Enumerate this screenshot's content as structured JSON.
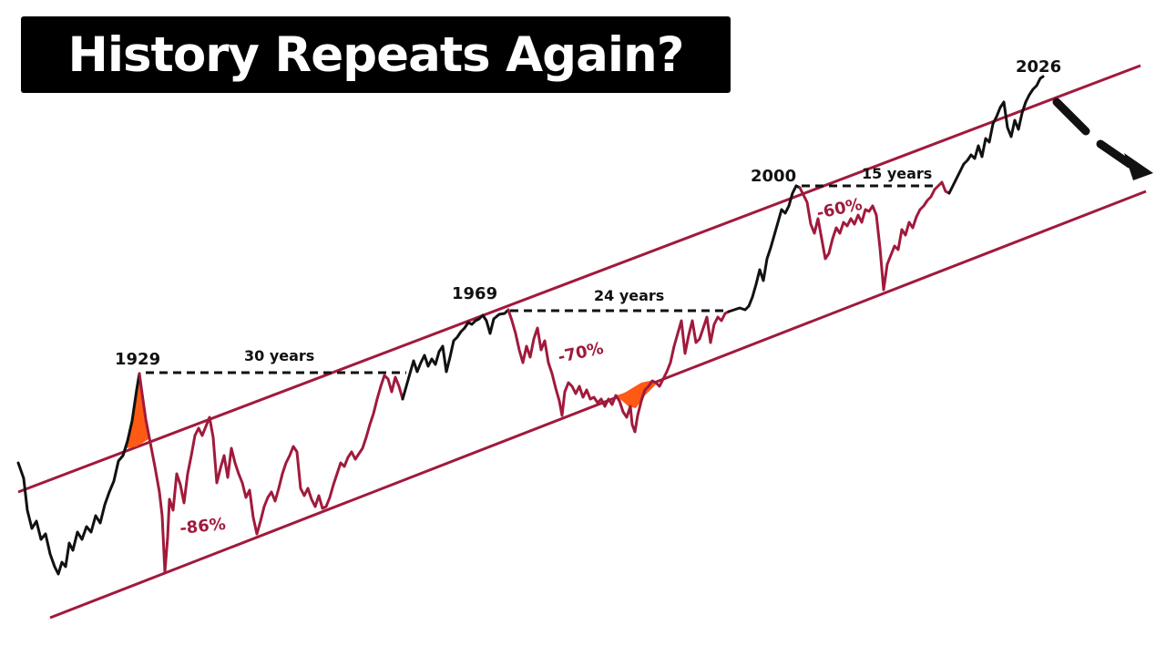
{
  "title": "History Repeats Again?",
  "colors": {
    "channel": "#a01a3c",
    "bear": "#a01a3c",
    "bull": "#111111",
    "bubble": "#ff5a14",
    "arrow": "#111111"
  },
  "chart_data": {
    "type": "line",
    "title": "History Repeats Again?",
    "xlabel": "",
    "ylabel": "",
    "peaks": [
      {
        "label": "1929",
        "drop": "-86%",
        "recovery": "30 years"
      },
      {
        "label": "1969",
        "drop": "-70%",
        "recovery": "24 years"
      },
      {
        "label": "2000",
        "drop": "-60%",
        "recovery": "15 years"
      },
      {
        "label": "2026",
        "drop": "",
        "recovery": ""
      }
    ],
    "annotations": [
      "1929",
      "30 years",
      "-86%",
      "1969",
      "24 years",
      "-70%",
      "2000",
      "15 years",
      "-60%",
      "2026"
    ],
    "grid": false,
    "legend": "none"
  }
}
